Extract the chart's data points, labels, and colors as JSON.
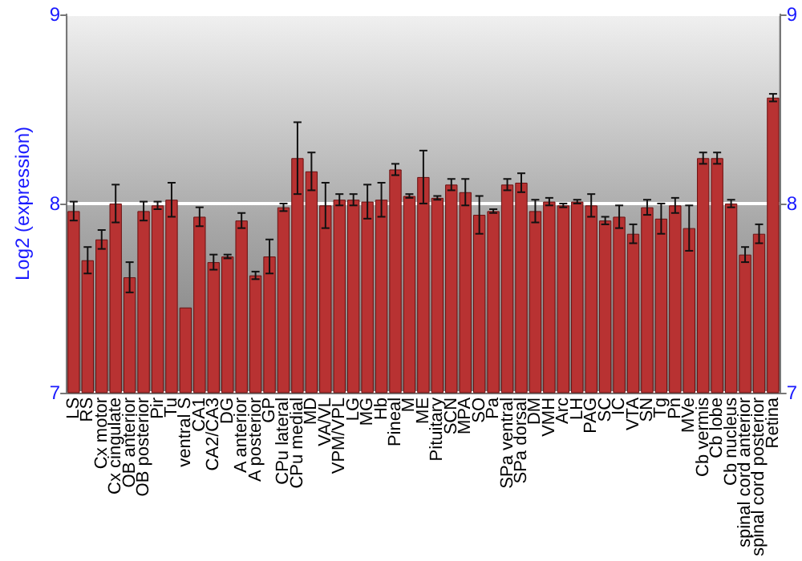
{
  "chart_data": {
    "type": "bar",
    "ylabel": "Log2 (expression)",
    "categories": [
      "LS",
      "RS",
      "Cx motor",
      "Cx cingulate",
      "OB anterior",
      "OB posterior",
      "Pir",
      "Tu",
      "ventral S",
      "CA1",
      "CA2/CA3",
      "DG",
      "A anterior",
      "A posterior",
      "GP",
      "CPu lateral",
      "CPu medial",
      "MD",
      "VA/VL",
      "VPM/VPL",
      "LG",
      "MG",
      "Hb",
      "Pineal",
      "M",
      "ME",
      "Pituitary",
      "SCN",
      "MPA",
      "SO",
      "Pa",
      "SPa ventral",
      "SPa dorsal",
      "DM",
      "VMH",
      "Arc",
      "LH",
      "PAG",
      "SC",
      "IC",
      "VTA",
      "SN",
      "Tg",
      "Pn",
      "MVe",
      "Cb vermis",
      "Cb lobe",
      "Cb nucleus",
      "spinal cord anterior",
      "spinal cord posterior",
      "Retina"
    ],
    "values": [
      7.96,
      7.7,
      7.81,
      8.0,
      7.61,
      7.96,
      7.99,
      8.02,
      7.45,
      7.93,
      7.69,
      7.72,
      7.91,
      7.62,
      7.72,
      7.98,
      8.24,
      8.17,
      7.99,
      8.02,
      8.02,
      8.01,
      8.02,
      8.18,
      8.04,
      8.14,
      8.03,
      8.1,
      8.06,
      7.94,
      7.96,
      8.1,
      8.11,
      7.96,
      8.01,
      7.99,
      8.01,
      7.99,
      7.91,
      7.93,
      7.84,
      7.98,
      7.92,
      7.99,
      7.87,
      8.24,
      8.24,
      8.0,
      7.73,
      7.84,
      8.56
    ],
    "errors": [
      0.05,
      0.07,
      0.05,
      0.1,
      0.08,
      0.05,
      0.02,
      0.09,
      null,
      0.05,
      0.04,
      0.01,
      0.04,
      0.02,
      0.09,
      0.02,
      0.19,
      0.1,
      0.12,
      0.03,
      0.03,
      0.09,
      0.09,
      0.03,
      0.01,
      0.14,
      0.01,
      0.03,
      0.07,
      0.1,
      0.01,
      0.03,
      0.05,
      0.06,
      0.02,
      0.01,
      0.01,
      0.06,
      0.02,
      0.06,
      0.05,
      0.04,
      0.08,
      0.04,
      0.12,
      0.03,
      0.03,
      0.02,
      0.04,
      0.05,
      0.02
    ],
    "color": "#b83232",
    "ylim": [
      7,
      9
    ],
    "yticks": [
      7,
      8,
      9
    ],
    "y2lim": [
      7,
      9
    ],
    "y2ticks": [
      7,
      8,
      9
    ],
    "grid": "y"
  }
}
